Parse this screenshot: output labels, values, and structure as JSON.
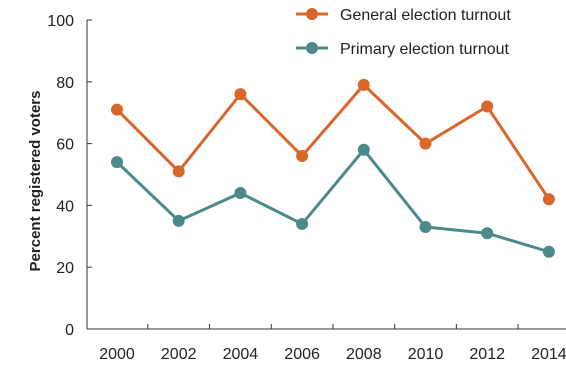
{
  "chart_data": {
    "type": "line",
    "title": "",
    "xlabel": "",
    "ylabel": "Percent registered voters",
    "ylim": [
      0,
      100
    ],
    "yticks": [
      0,
      20,
      40,
      60,
      80,
      100
    ],
    "categories": [
      "2000",
      "2002",
      "2004",
      "2006",
      "2008",
      "2010",
      "2012",
      "2014"
    ],
    "series": [
      {
        "name": "General election turnout",
        "color": "#d9662a",
        "values": [
          71,
          51,
          76,
          56,
          79,
          60,
          72,
          42
        ]
      },
      {
        "name": "Primary election turnout",
        "color": "#4a8a88",
        "values": [
          54,
          35,
          44,
          34,
          58,
          33,
          31,
          25
        ]
      }
    ],
    "legend": "top-right",
    "grid": false
  }
}
